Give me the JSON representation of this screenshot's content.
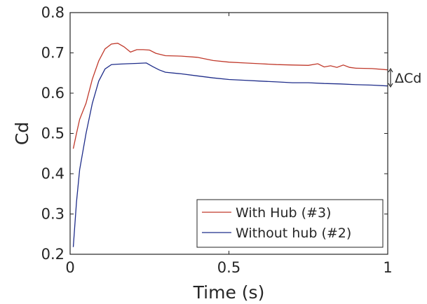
{
  "chart_data": {
    "type": "line",
    "title": "",
    "xlabel": "Time (s)",
    "ylabel": "Cd",
    "xlim": [
      0,
      1
    ],
    "ylim": [
      0.2,
      0.8
    ],
    "xticks": [
      0,
      0.5,
      1
    ],
    "xtick_labels": [
      "0",
      "0.5",
      "1"
    ],
    "yticks": [
      0.2,
      0.3,
      0.4,
      0.5,
      0.6,
      0.7,
      0.8
    ],
    "ytick_labels": [
      "0.2",
      "0.3",
      "0.4",
      "0.5",
      "0.6",
      "0.7",
      "0.8"
    ],
    "grid": false,
    "legend_position": "bottom-right",
    "series": [
      {
        "name": "With Hub (#3)",
        "color": "#c0392b",
        "x": [
          0.01,
          0.02,
          0.03,
          0.05,
          0.07,
          0.09,
          0.11,
          0.13,
          0.15,
          0.17,
          0.19,
          0.21,
          0.23,
          0.25,
          0.27,
          0.3,
          0.35,
          0.4,
          0.45,
          0.5,
          0.55,
          0.6,
          0.65,
          0.7,
          0.75,
          0.78,
          0.8,
          0.82,
          0.84,
          0.86,
          0.88,
          0.9,
          0.95,
          1.0
        ],
        "y": [
          0.462,
          0.5,
          0.535,
          0.575,
          0.635,
          0.68,
          0.71,
          0.722,
          0.724,
          0.715,
          0.702,
          0.708,
          0.708,
          0.707,
          0.699,
          0.693,
          0.692,
          0.689,
          0.681,
          0.677,
          0.675,
          0.673,
          0.671,
          0.67,
          0.669,
          0.673,
          0.665,
          0.668,
          0.664,
          0.67,
          0.664,
          0.662,
          0.661,
          0.658
        ]
      },
      {
        "name": "Without hub (#2)",
        "color": "#1f2d8a",
        "x": [
          0.01,
          0.02,
          0.03,
          0.05,
          0.07,
          0.09,
          0.11,
          0.13,
          0.15,
          0.18,
          0.21,
          0.24,
          0.26,
          0.28,
          0.3,
          0.35,
          0.4,
          0.45,
          0.5,
          0.55,
          0.6,
          0.65,
          0.7,
          0.75,
          0.8,
          0.85,
          0.9,
          0.95,
          1.0
        ],
        "y": [
          0.218,
          0.33,
          0.41,
          0.5,
          0.575,
          0.63,
          0.66,
          0.671,
          0.672,
          0.673,
          0.674,
          0.675,
          0.666,
          0.658,
          0.652,
          0.648,
          0.643,
          0.638,
          0.634,
          0.632,
          0.63,
          0.628,
          0.626,
          0.626,
          0.624,
          0.623,
          0.621,
          0.62,
          0.618
        ]
      }
    ],
    "annotations": [
      {
        "text": "ΔCd"
      }
    ]
  }
}
